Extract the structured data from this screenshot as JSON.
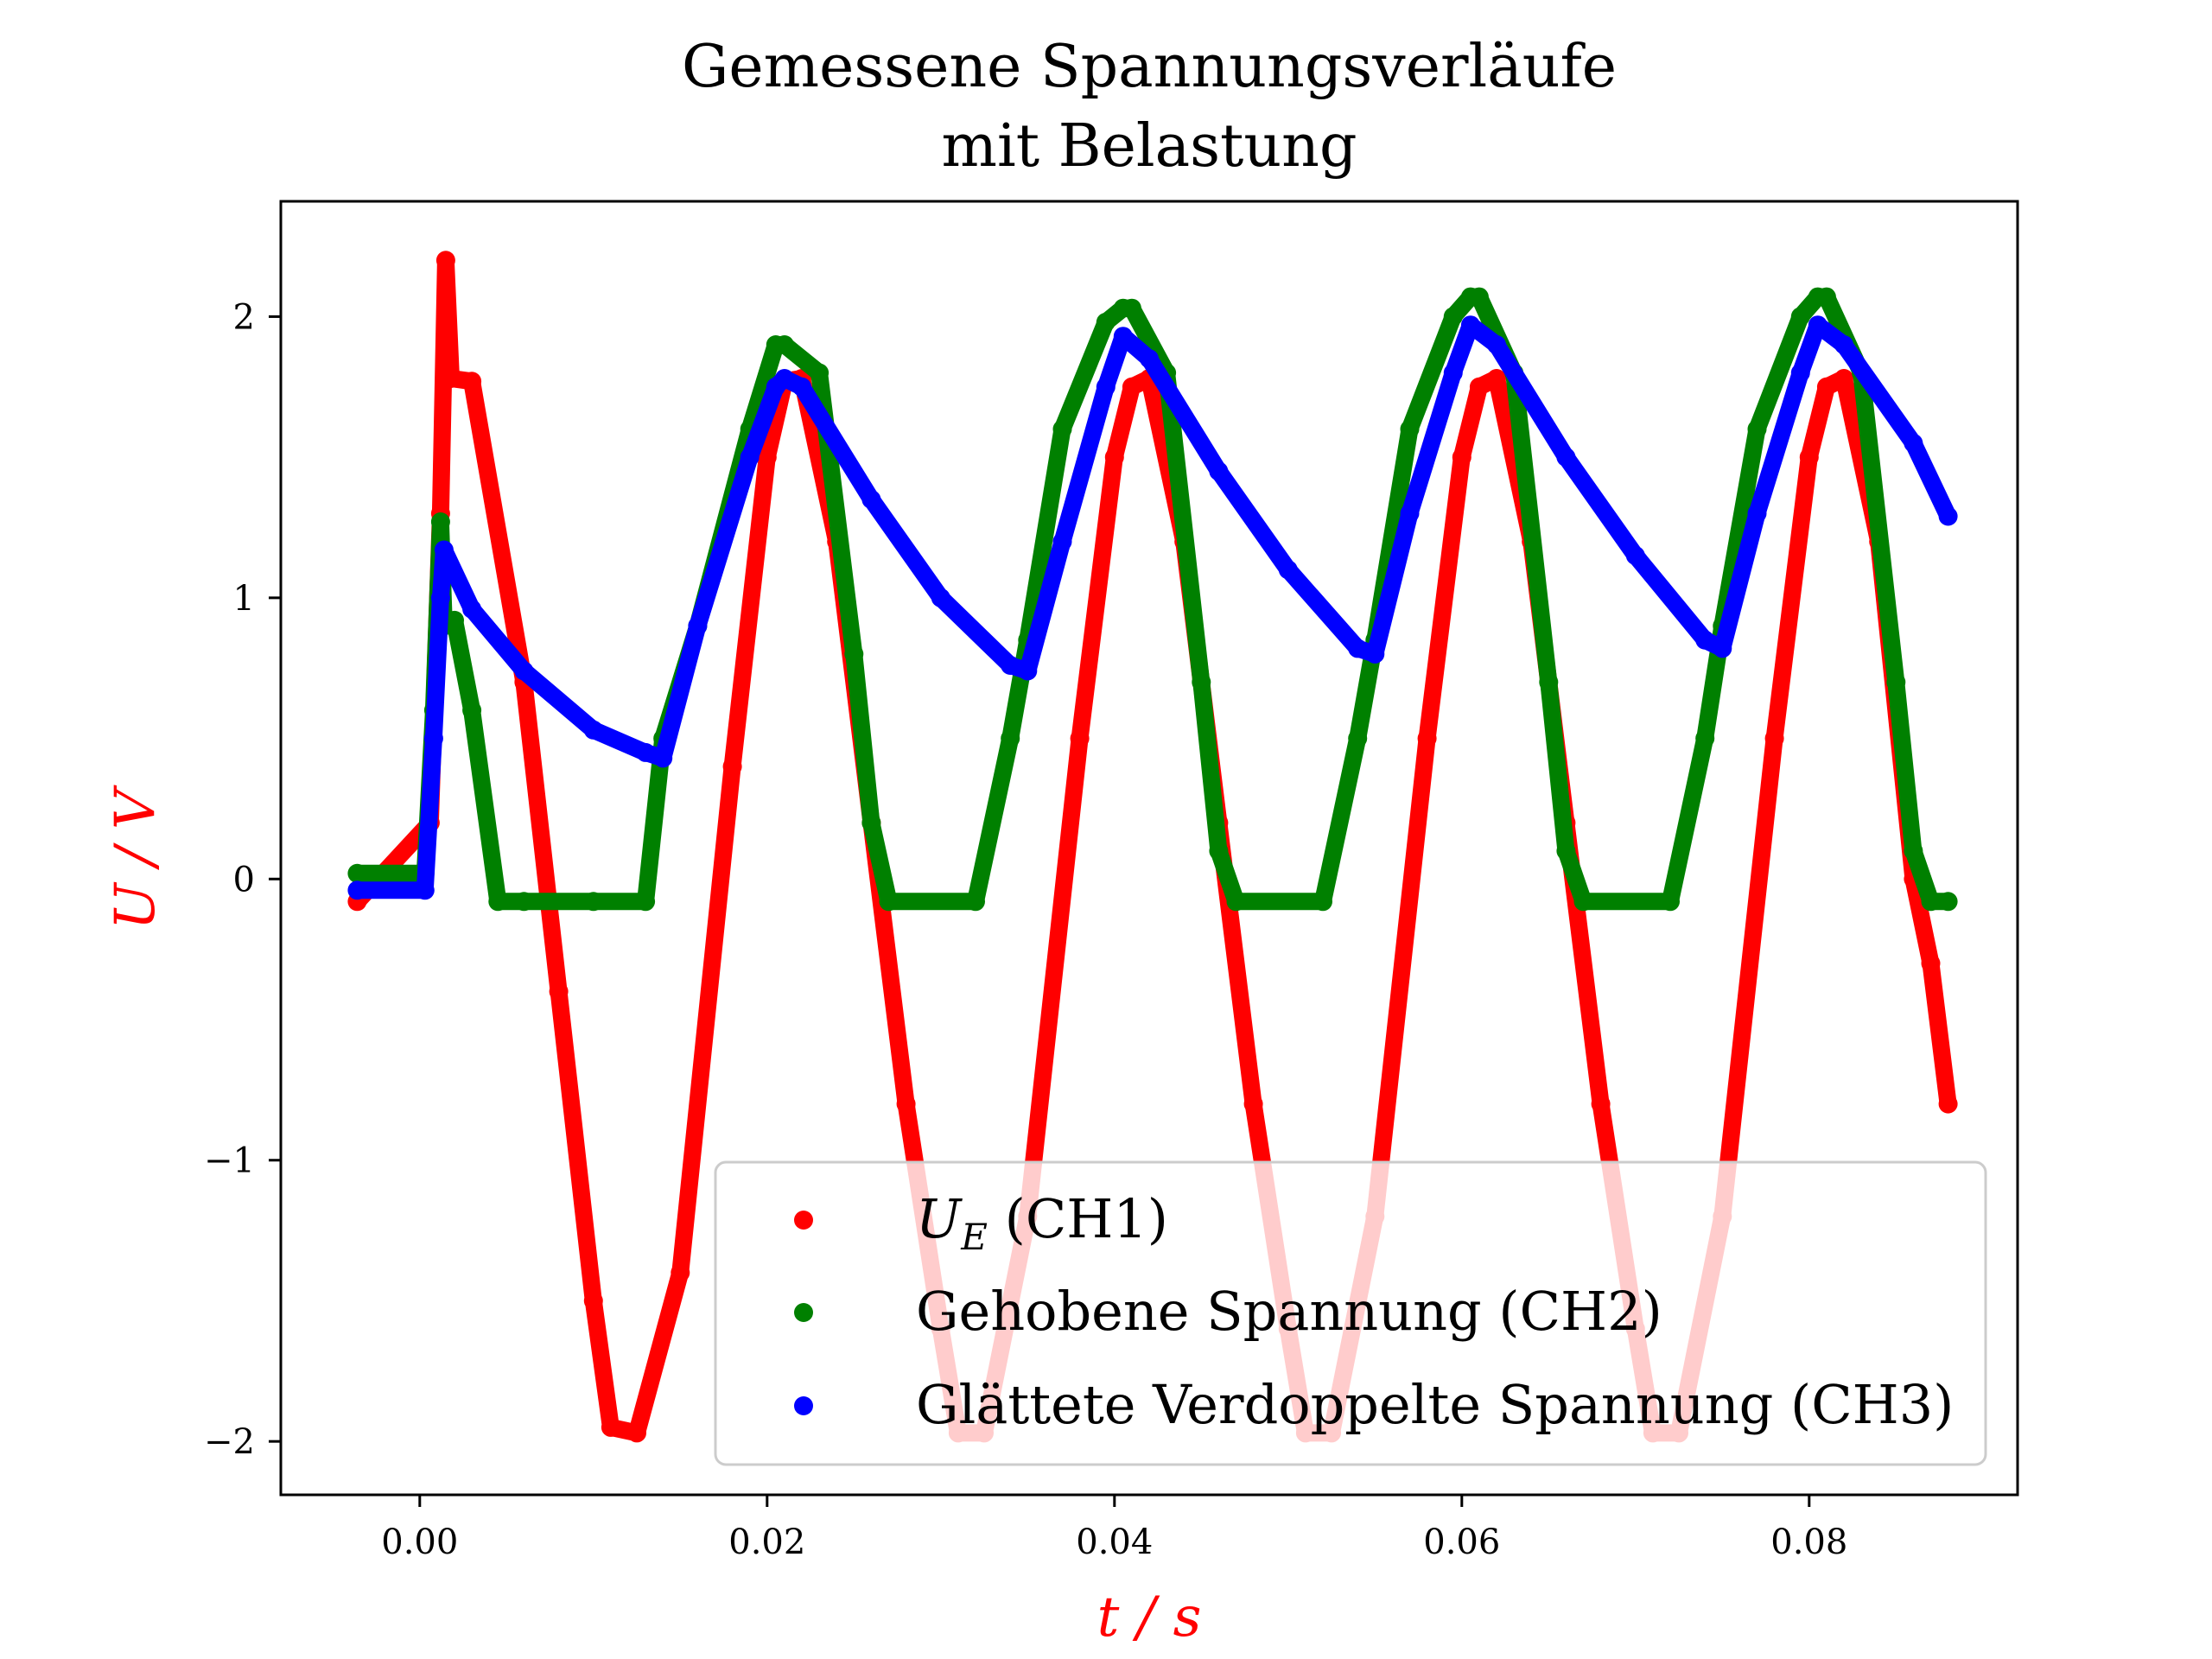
{
  "chart_data": {
    "type": "scatter",
    "title_line1": "Gemessene Spannungsverläufe",
    "title_line2": "mit Belastung",
    "xlabel": "t / s",
    "ylabel": "U / V",
    "axis_label_color": "#ff0000",
    "xlim": [
      -0.008,
      0.092
    ],
    "ylim": [
      -2.19,
      2.41
    ],
    "xticks": [
      0.0,
      0.02,
      0.04,
      0.06,
      0.08
    ],
    "xtick_labels": [
      "0.00",
      "0.02",
      "0.04",
      "0.06",
      "0.08"
    ],
    "yticks": [
      2,
      1,
      0,
      -1,
      -2
    ],
    "ytick_labels": [
      "2",
      "1",
      "0",
      "−1",
      "−2"
    ],
    "grid": false,
    "legend_position": "lower-right",
    "series": [
      {
        "name": "U_E (CH1)",
        "legend_main": "U",
        "legend_sub": "E",
        "legend_rest": " (CH1)",
        "color": "#ff0000",
        "x": [
          -0.0036,
          0.0006,
          0.0012,
          0.0015,
          0.0018,
          0.003,
          0.006,
          0.008,
          0.01,
          0.011,
          0.0125,
          0.015,
          0.018,
          0.02,
          0.021,
          0.022,
          0.024,
          0.026,
          0.028,
          0.03,
          0.031,
          0.0325,
          0.035,
          0.038,
          0.04,
          0.041,
          0.042,
          0.044,
          0.046,
          0.048,
          0.05,
          0.051,
          0.0525,
          0.055,
          0.058,
          0.06,
          0.061,
          0.062,
          0.064,
          0.066,
          0.068,
          0.07,
          0.071,
          0.0725,
          0.075,
          0.078,
          0.08,
          0.081,
          0.082,
          0.084,
          0.086,
          0.087,
          0.088
        ],
        "y": [
          -0.08,
          0.2,
          1.3,
          2.2,
          1.78,
          1.77,
          0.7,
          -0.4,
          -1.5,
          -1.95,
          -1.97,
          -1.4,
          0.4,
          1.5,
          1.77,
          1.78,
          1.2,
          0.2,
          -0.8,
          -1.6,
          -1.97,
          -1.97,
          -1.2,
          0.5,
          1.5,
          1.75,
          1.78,
          1.2,
          0.2,
          -0.8,
          -1.6,
          -1.97,
          -1.97,
          -1.2,
          0.5,
          1.5,
          1.75,
          1.78,
          1.2,
          0.2,
          -0.8,
          -1.6,
          -1.97,
          -1.97,
          -1.2,
          0.5,
          1.5,
          1.75,
          1.78,
          1.2,
          0.0,
          -0.3,
          -0.8
        ]
      },
      {
        "name": "Gehobene Spannung (CH2)",
        "color": "#008000",
        "x": [
          -0.0036,
          0.0003,
          0.0008,
          0.0012,
          0.0014,
          0.002,
          0.003,
          0.0045,
          0.006,
          0.01,
          0.013,
          0.014,
          0.016,
          0.019,
          0.0205,
          0.021,
          0.023,
          0.025,
          0.026,
          0.027,
          0.032,
          0.034,
          0.035,
          0.037,
          0.0395,
          0.0405,
          0.041,
          0.043,
          0.045,
          0.046,
          0.047,
          0.052,
          0.054,
          0.055,
          0.057,
          0.0595,
          0.0605,
          0.061,
          0.063,
          0.065,
          0.066,
          0.067,
          0.072,
          0.074,
          0.075,
          0.077,
          0.0795,
          0.0805,
          0.081,
          0.083,
          0.085,
          0.086,
          0.087,
          0.088
        ],
        "y": [
          0.02,
          0.02,
          0.6,
          1.27,
          0.9,
          0.92,
          0.6,
          -0.08,
          -0.08,
          -0.08,
          -0.08,
          0.5,
          0.9,
          1.6,
          1.9,
          1.9,
          1.8,
          0.8,
          0.2,
          -0.08,
          -0.08,
          0.5,
          0.85,
          1.6,
          1.98,
          2.03,
          2.03,
          1.8,
          0.7,
          0.1,
          -0.08,
          -0.08,
          0.5,
          0.85,
          1.6,
          2.0,
          2.07,
          2.07,
          1.8,
          0.7,
          0.1,
          -0.08,
          -0.08,
          0.5,
          0.9,
          1.6,
          2.0,
          2.07,
          2.07,
          1.8,
          0.7,
          0.1,
          -0.08,
          -0.08
        ]
      },
      {
        "name": "Glättete Verdoppelte Spannung (CH3)",
        "color": "#0000ff",
        "x": [
          -0.0036,
          0.0003,
          0.0008,
          0.0012,
          0.0014,
          0.003,
          0.006,
          0.01,
          0.013,
          0.014,
          0.016,
          0.019,
          0.0205,
          0.021,
          0.022,
          0.026,
          0.03,
          0.034,
          0.035,
          0.037,
          0.0395,
          0.0405,
          0.042,
          0.046,
          0.05,
          0.054,
          0.055,
          0.057,
          0.0595,
          0.0605,
          0.062,
          0.066,
          0.07,
          0.074,
          0.075,
          0.077,
          0.0795,
          0.0805,
          0.082,
          0.086,
          0.088
        ],
        "y": [
          -0.04,
          -0.04,
          0.5,
          1.0,
          1.17,
          0.96,
          0.74,
          0.53,
          0.45,
          0.43,
          0.9,
          1.5,
          1.75,
          1.78,
          1.75,
          1.35,
          1.0,
          0.76,
          0.74,
          1.2,
          1.75,
          1.93,
          1.85,
          1.45,
          1.1,
          0.82,
          0.8,
          1.3,
          1.8,
          1.97,
          1.9,
          1.5,
          1.15,
          0.85,
          0.82,
          1.3,
          1.8,
          1.97,
          1.9,
          1.55,
          1.29
        ]
      }
    ]
  }
}
